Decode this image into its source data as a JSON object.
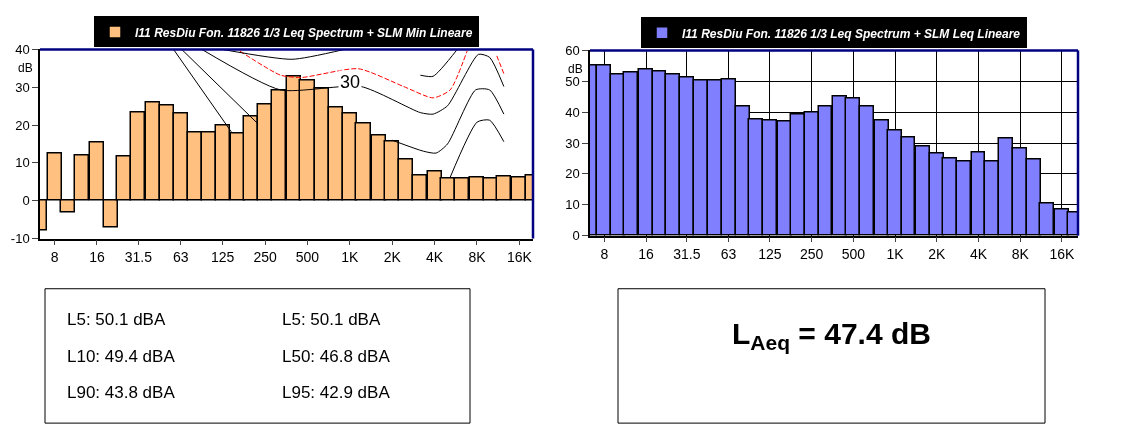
{
  "chart_data": [
    {
      "type": "bar",
      "ylabel": "dB",
      "x": [
        6.3,
        8,
        10,
        12.5,
        16,
        20,
        25,
        31.5,
        40,
        50,
        63,
        80,
        100,
        125,
        160,
        200,
        250,
        315,
        400,
        500,
        630,
        800,
        1000,
        1250,
        1600,
        2000,
        2500,
        3150,
        4000,
        5000,
        6300,
        8000,
        10000,
        12500,
        16000,
        20000
      ],
      "series": [
        {
          "name": "I11 ResDiu Fon. 11826 1/3 Leq Spectrum + SLM Min Lineare",
          "color": "#ffc080",
          "values": [
            -7.9,
            12.5,
            -3,
            11.9,
            15.4,
            -7.1,
            11.7,
            23.3,
            25.9,
            25.2,
            23.2,
            18,
            18,
            19.9,
            17.7,
            22.3,
            25.4,
            29.1,
            32.8,
            31.8,
            29.7,
            24.6,
            23.1,
            20.4,
            17.2,
            15.6,
            10.8,
            6.8,
            7.7,
            5.9,
            5.9,
            6.1,
            5.8,
            6.3,
            6.1,
            6.7
          ]
        },
        {
          "type": "line",
          "color": "#000000",
          "x": [
            56,
            144
          ],
          "values": [
            40,
            18.2
          ]
        },
        {
          "type": "line",
          "color": "#000000",
          "x": [
            64,
            223
          ],
          "values": [
            40,
            20.3
          ]
        },
        {
          "type": "line",
          "color": "#000000",
          "x": [
            2000,
            3330,
            4100,
            4940,
            7820,
            9850,
            12420
          ],
          "values": [
            16,
            13.1,
            12.6,
            15,
            29.3,
            29.3,
            22.9
          ]
        },
        {
          "type": "line",
          "color": "#000000",
          "x": [
            89,
            322,
            1200,
            3170,
            3900,
            4940,
            8190,
            9850,
            12420
          ],
          "values": [
            40,
            29.3,
            30.2,
            23.3,
            22.9,
            25.1,
            38.7,
            37.9,
            30.2
          ]
        },
        {
          "type": "line",
          "color": "#ff0000",
          "line_style": "dashed",
          "x": [
            165,
            322,
            455,
            1150,
            2410,
            3900,
            5160,
            6810
          ],
          "values": [
            39.6,
            33.2,
            32.6,
            34.9,
            30.2,
            27.2,
            29.3,
            39.6
          ]
        },
        {
          "type": "line",
          "color": "#ff0000",
          "line_style": "dashed",
          "x": [
            11060,
            12420
          ],
          "values": [
            38.3,
            33.6
          ]
        },
        {
          "type": "line",
          "color": "#000000",
          "x": [
            125,
            388,
            911
          ],
          "values": [
            40,
            37.4,
            40
          ]
        },
        {
          "type": "line",
          "color": "#000000",
          "x": [
            3170,
            3900,
            5790
          ],
          "values": [
            33.2,
            32.9,
            40
          ]
        },
        {
          "type": "line",
          "color": "#000000",
          "x": [
            5160,
            8020,
            9850,
            12420
          ],
          "values": [
            6.2,
            20.8,
            21.3,
            15.6
          ]
        }
      ],
      "annotations": [
        {
          "text": "30",
          "x": 1000,
          "y": 31.5
        }
      ],
      "xlim": [
        6.3,
        20000
      ],
      "log": "x",
      "xticks": [
        8,
        16,
        31.5,
        63,
        125,
        250,
        500,
        {
          "value": 1000,
          "label": "1K"
        },
        {
          "value": 2000,
          "label": "2K"
        },
        {
          "value": 4000,
          "label": "4K"
        },
        {
          "value": 8000,
          "label": "8K"
        },
        {
          "value": 16000,
          "label": "16K"
        }
      ],
      "ylim": [
        -10,
        40
      ],
      "yticks": [
        -10,
        0,
        10,
        20,
        30,
        40
      ],
      "grid": false,
      "legend": "top"
    },
    {
      "type": "bar",
      "ylabel": "dB",
      "x": [
        6.3,
        8,
        10,
        12.5,
        16,
        20,
        25,
        31.5,
        40,
        50,
        63,
        80,
        100,
        125,
        160,
        200,
        250,
        315,
        400,
        500,
        630,
        800,
        1000,
        1250,
        1600,
        2000,
        2500,
        3150,
        4000,
        5000,
        6300,
        8000,
        10000,
        12500,
        16000,
        20000
      ],
      "series": [
        {
          "name": "I11 ResDiu Fon. 11826 1/3 Leq Spectrum + SLM Leq Lineare",
          "color": "#8080ff",
          "values": [
            55.3,
            55.3,
            52.3,
            53,
            54,
            53.2,
            52.1,
            51.1,
            50.3,
            50.3,
            50.7,
            42,
            37.7,
            37.4,
            37.1,
            39.2,
            39.9,
            42,
            45.1,
            44.4,
            41.8,
            37.4,
            34.2,
            31.7,
            28.9,
            26.8,
            25.1,
            24.2,
            27,
            23.9,
            31.4,
            28.1,
            24.8,
            10.3,
            8.6,
            7.6
          ]
        }
      ],
      "xlim": [
        6.3,
        20900
      ],
      "log": "x",
      "xticks": [
        8,
        16,
        31.5,
        63,
        125,
        250,
        500,
        {
          "value": 1000,
          "label": "1K"
        },
        {
          "value": 2000,
          "label": "2K"
        },
        {
          "value": 4000,
          "label": "4K"
        },
        {
          "value": 8000,
          "label": "8K"
        },
        {
          "value": 16000,
          "label": "16K"
        }
      ],
      "ylim": [
        0,
        60
      ],
      "yticks": [
        0,
        10,
        20,
        30,
        40,
        50,
        60
      ],
      "grid": true,
      "legend": "top"
    },
    {
      "type": "other",
      "annotations": [
        "L5: 50.1 dBA",
        "L5: 50.1 dBA",
        "L10: 49.4 dBA",
        "L50: 46.8 dBA",
        "L90: 43.8 dBA",
        "L95: 42.9 dBA"
      ]
    },
    {
      "type": "other",
      "title": "L$_{Aeq}$ = 47.4 dB"
    }
  ]
}
